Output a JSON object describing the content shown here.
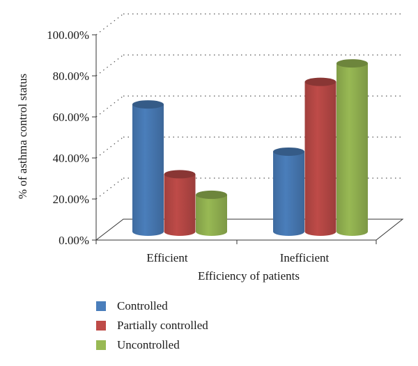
{
  "chart_data": {
    "type": "bar",
    "categories": [
      "Efficient",
      "Inefficient"
    ],
    "series": [
      {
        "name": "Controlled",
        "color": "#4a7ebb",
        "values": [
          62,
          39
        ]
      },
      {
        "name": "Partially controlled",
        "color": "#be4b48",
        "values": [
          28,
          73
        ]
      },
      {
        "name": "Uncontrolled",
        "color": "#98b954",
        "values": [
          18,
          82
        ]
      }
    ],
    "ylim": [
      0,
      100
    ],
    "yticks": [
      "0.00%",
      "20.00%",
      "40.00%",
      "60.00%",
      "80.00%",
      "100.00%"
    ],
    "ylabel": "% of asthma control status",
    "xlabel": "Efficiency of patients",
    "legend_position": "bottom-left",
    "grid": "dotted",
    "three_d": true
  }
}
